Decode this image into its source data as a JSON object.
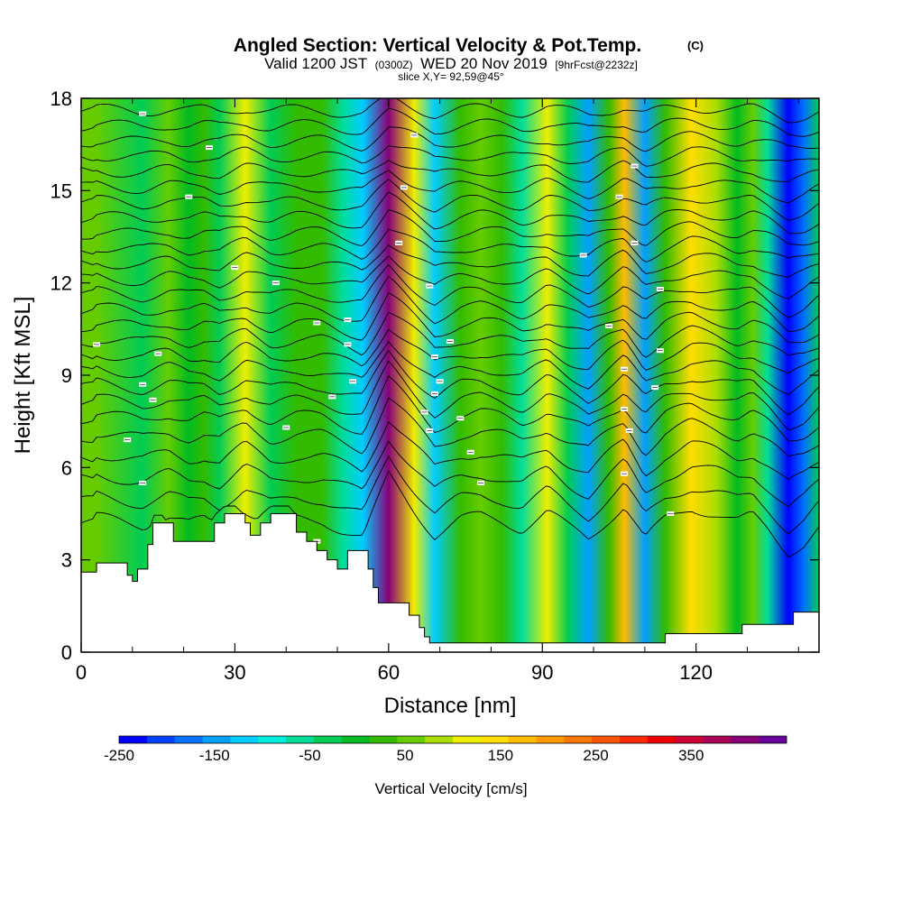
{
  "chart_data": {
    "type": "heatmap",
    "title": "Angled Section: Vertical Velocity & Pot.Temp.",
    "title_tag": "(C)",
    "subtitle_valid": "Valid 1200 JST",
    "subtitle_z": "(0300Z)",
    "subtitle_date": "WED 20 Nov 2019",
    "subtitle_fcst": "[9hrFcst@2232z]",
    "slice_text": "slice X,Y= 92,59@45°",
    "xlabel": "Distance [nm]",
    "ylabel": "Height [Kft MSL]",
    "xlim": [
      0,
      144
    ],
    "ylim": [
      0,
      18
    ],
    "x_ticks": [
      "0",
      "30",
      "60",
      "90",
      "120"
    ],
    "x_tick_values": [
      0,
      30,
      60,
      90,
      120
    ],
    "y_ticks": [
      "0",
      "3",
      "6",
      "9",
      "12",
      "15",
      "18"
    ],
    "y_tick_values": [
      0,
      3,
      6,
      9,
      12,
      15,
      18
    ],
    "colorbar": {
      "label": "Vertical Velocity [cm/s]",
      "range": [
        -250,
        450
      ],
      "tick_labels": [
        "-250",
        "-150",
        "-50",
        "50",
        "150",
        "250",
        "350"
      ],
      "tick_values": [
        -250,
        -150,
        -50,
        50,
        150,
        250,
        350
      ],
      "colors": [
        "#0000ff",
        "#0040ff",
        "#0070ff",
        "#00a0ff",
        "#00ccff",
        "#00eedd",
        "#00dd99",
        "#00cc55",
        "#00bb22",
        "#33bb00",
        "#66cc00",
        "#aadd00",
        "#eeee00",
        "#ffdd00",
        "#ffbb00",
        "#ff9900",
        "#ff7700",
        "#ff5500",
        "#ff2a00",
        "#ee0000",
        "#cc0033",
        "#aa0055",
        "#880077",
        "#660099"
      ]
    },
    "velocity_columns": [
      {
        "x": 3,
        "w": 50
      },
      {
        "x": 12,
        "w": -20
      },
      {
        "x": 17,
        "w": 60
      },
      {
        "x": 21,
        "w": -10
      },
      {
        "x": 24,
        "w": 25
      },
      {
        "x": 27,
        "w": -40
      },
      {
        "x": 32,
        "w": 125
      },
      {
        "x": 37,
        "w": -25
      },
      {
        "x": 42,
        "w": 30
      },
      {
        "x": 47,
        "w": 20
      },
      {
        "x": 51,
        "w": -60
      },
      {
        "x": 55,
        "w": -130
      },
      {
        "x": 60,
        "w": 420
      },
      {
        "x": 65,
        "w": 120
      },
      {
        "x": 69,
        "w": -110
      },
      {
        "x": 74,
        "w": 30
      },
      {
        "x": 78,
        "w": 60
      },
      {
        "x": 82,
        "w": 20
      },
      {
        "x": 86,
        "w": -50
      },
      {
        "x": 91,
        "w": 100
      },
      {
        "x": 95,
        "w": -40
      },
      {
        "x": 99,
        "w": -140
      },
      {
        "x": 103,
        "w": 40
      },
      {
        "x": 106,
        "w": 160
      },
      {
        "x": 110,
        "w": -150
      },
      {
        "x": 114,
        "w": 30
      },
      {
        "x": 119,
        "w": 140
      },
      {
        "x": 124,
        "w": 80
      },
      {
        "x": 128,
        "w": 10
      },
      {
        "x": 131,
        "w": 60
      },
      {
        "x": 134,
        "w": -60
      },
      {
        "x": 138,
        "w": -260
      },
      {
        "x": 141,
        "w": -180
      },
      {
        "x": 144,
        "w": -40
      }
    ],
    "terrain_height": [
      {
        "x": 0,
        "h": 2.6
      },
      {
        "x": 3,
        "h": 2.9
      },
      {
        "x": 7,
        "h": 2.9
      },
      {
        "x": 9,
        "h": 2.5
      },
      {
        "x": 10,
        "h": 2.3
      },
      {
        "x": 11,
        "h": 2.7
      },
      {
        "x": 13,
        "h": 3.5
      },
      {
        "x": 14,
        "h": 4.2
      },
      {
        "x": 16,
        "h": 4.2
      },
      {
        "x": 18,
        "h": 3.6
      },
      {
        "x": 20,
        "h": 3.6
      },
      {
        "x": 24,
        "h": 3.6
      },
      {
        "x": 26,
        "h": 4.2
      },
      {
        "x": 28,
        "h": 4.5
      },
      {
        "x": 30,
        "h": 4.5
      },
      {
        "x": 32,
        "h": 4.2
      },
      {
        "x": 33,
        "h": 3.8
      },
      {
        "x": 35,
        "h": 4.2
      },
      {
        "x": 37,
        "h": 4.5
      },
      {
        "x": 41,
        "h": 4.5
      },
      {
        "x": 42,
        "h": 3.9
      },
      {
        "x": 44,
        "h": 3.6
      },
      {
        "x": 46,
        "h": 3.3
      },
      {
        "x": 48,
        "h": 3.0
      },
      {
        "x": 50,
        "h": 2.7
      },
      {
        "x": 52,
        "h": 3.3
      },
      {
        "x": 55,
        "h": 3.3
      },
      {
        "x": 56,
        "h": 2.7
      },
      {
        "x": 57,
        "h": 2.1
      },
      {
        "x": 58,
        "h": 1.6
      },
      {
        "x": 62,
        "h": 1.6
      },
      {
        "x": 64,
        "h": 1.2
      },
      {
        "x": 66,
        "h": 0.8
      },
      {
        "x": 67,
        "h": 0.5
      },
      {
        "x": 68,
        "h": 0.3
      },
      {
        "x": 72,
        "h": 0.3
      },
      {
        "x": 100,
        "h": 0.3
      },
      {
        "x": 113,
        "h": 0.3
      },
      {
        "x": 114,
        "h": 0.6
      },
      {
        "x": 128,
        "h": 0.6
      },
      {
        "x": 129,
        "h": 0.9
      },
      {
        "x": 138,
        "h": 0.9
      },
      {
        "x": 139,
        "h": 1.3
      },
      {
        "x": 144,
        "h": 1.3
      }
    ],
    "theta_contour_heights": [
      4.2,
      4.9,
      5.6,
      6.3,
      7.0,
      7.6,
      8.1,
      8.6,
      9.1,
      9.6,
      10.1,
      10.6,
      11.1,
      11.6,
      12.1,
      12.6,
      13.1,
      13.6,
      14.1,
      14.6,
      15.1,
      15.6,
      16.1,
      16.6,
      17.1,
      17.6
    ],
    "contour_labels": [
      {
        "x": 12,
        "y": 17.5
      },
      {
        "x": 25,
        "y": 16.4
      },
      {
        "x": 21,
        "y": 14.8
      },
      {
        "x": 3,
        "y": 10.0
      },
      {
        "x": 15,
        "y": 9.7
      },
      {
        "x": 12,
        "y": 8.7
      },
      {
        "x": 14,
        "y": 8.2
      },
      {
        "x": 9,
        "y": 6.9
      },
      {
        "x": 12,
        "y": 5.5
      },
      {
        "x": 30,
        "y": 12.5
      },
      {
        "x": 38,
        "y": 12.0
      },
      {
        "x": 46,
        "y": 10.7
      },
      {
        "x": 52,
        "y": 10.8
      },
      {
        "x": 52,
        "y": 10.0
      },
      {
        "x": 53,
        "y": 8.8
      },
      {
        "x": 49,
        "y": 8.3
      },
      {
        "x": 40,
        "y": 7.3
      },
      {
        "x": 46,
        "y": 3.6
      },
      {
        "x": 65,
        "y": 16.8
      },
      {
        "x": 63,
        "y": 15.1
      },
      {
        "x": 62,
        "y": 13.3
      },
      {
        "x": 68,
        "y": 11.9
      },
      {
        "x": 72,
        "y": 10.1
      },
      {
        "x": 69,
        "y": 9.6
      },
      {
        "x": 70,
        "y": 8.8
      },
      {
        "x": 69,
        "y": 8.4
      },
      {
        "x": 67,
        "y": 7.8
      },
      {
        "x": 74,
        "y": 7.6
      },
      {
        "x": 68,
        "y": 7.2
      },
      {
        "x": 76,
        "y": 6.5
      },
      {
        "x": 78,
        "y": 5.5
      },
      {
        "x": 108,
        "y": 15.8
      },
      {
        "x": 105,
        "y": 14.8
      },
      {
        "x": 108,
        "y": 13.3
      },
      {
        "x": 98,
        "y": 12.9
      },
      {
        "x": 113,
        "y": 11.8
      },
      {
        "x": 103,
        "y": 10.6
      },
      {
        "x": 113,
        "y": 9.8
      },
      {
        "x": 106,
        "y": 9.2
      },
      {
        "x": 112,
        "y": 8.6
      },
      {
        "x": 106,
        "y": 7.9
      },
      {
        "x": 107,
        "y": 7.2
      },
      {
        "x": 106,
        "y": 5.8
      },
      {
        "x": 115,
        "y": 4.5
      }
    ]
  }
}
